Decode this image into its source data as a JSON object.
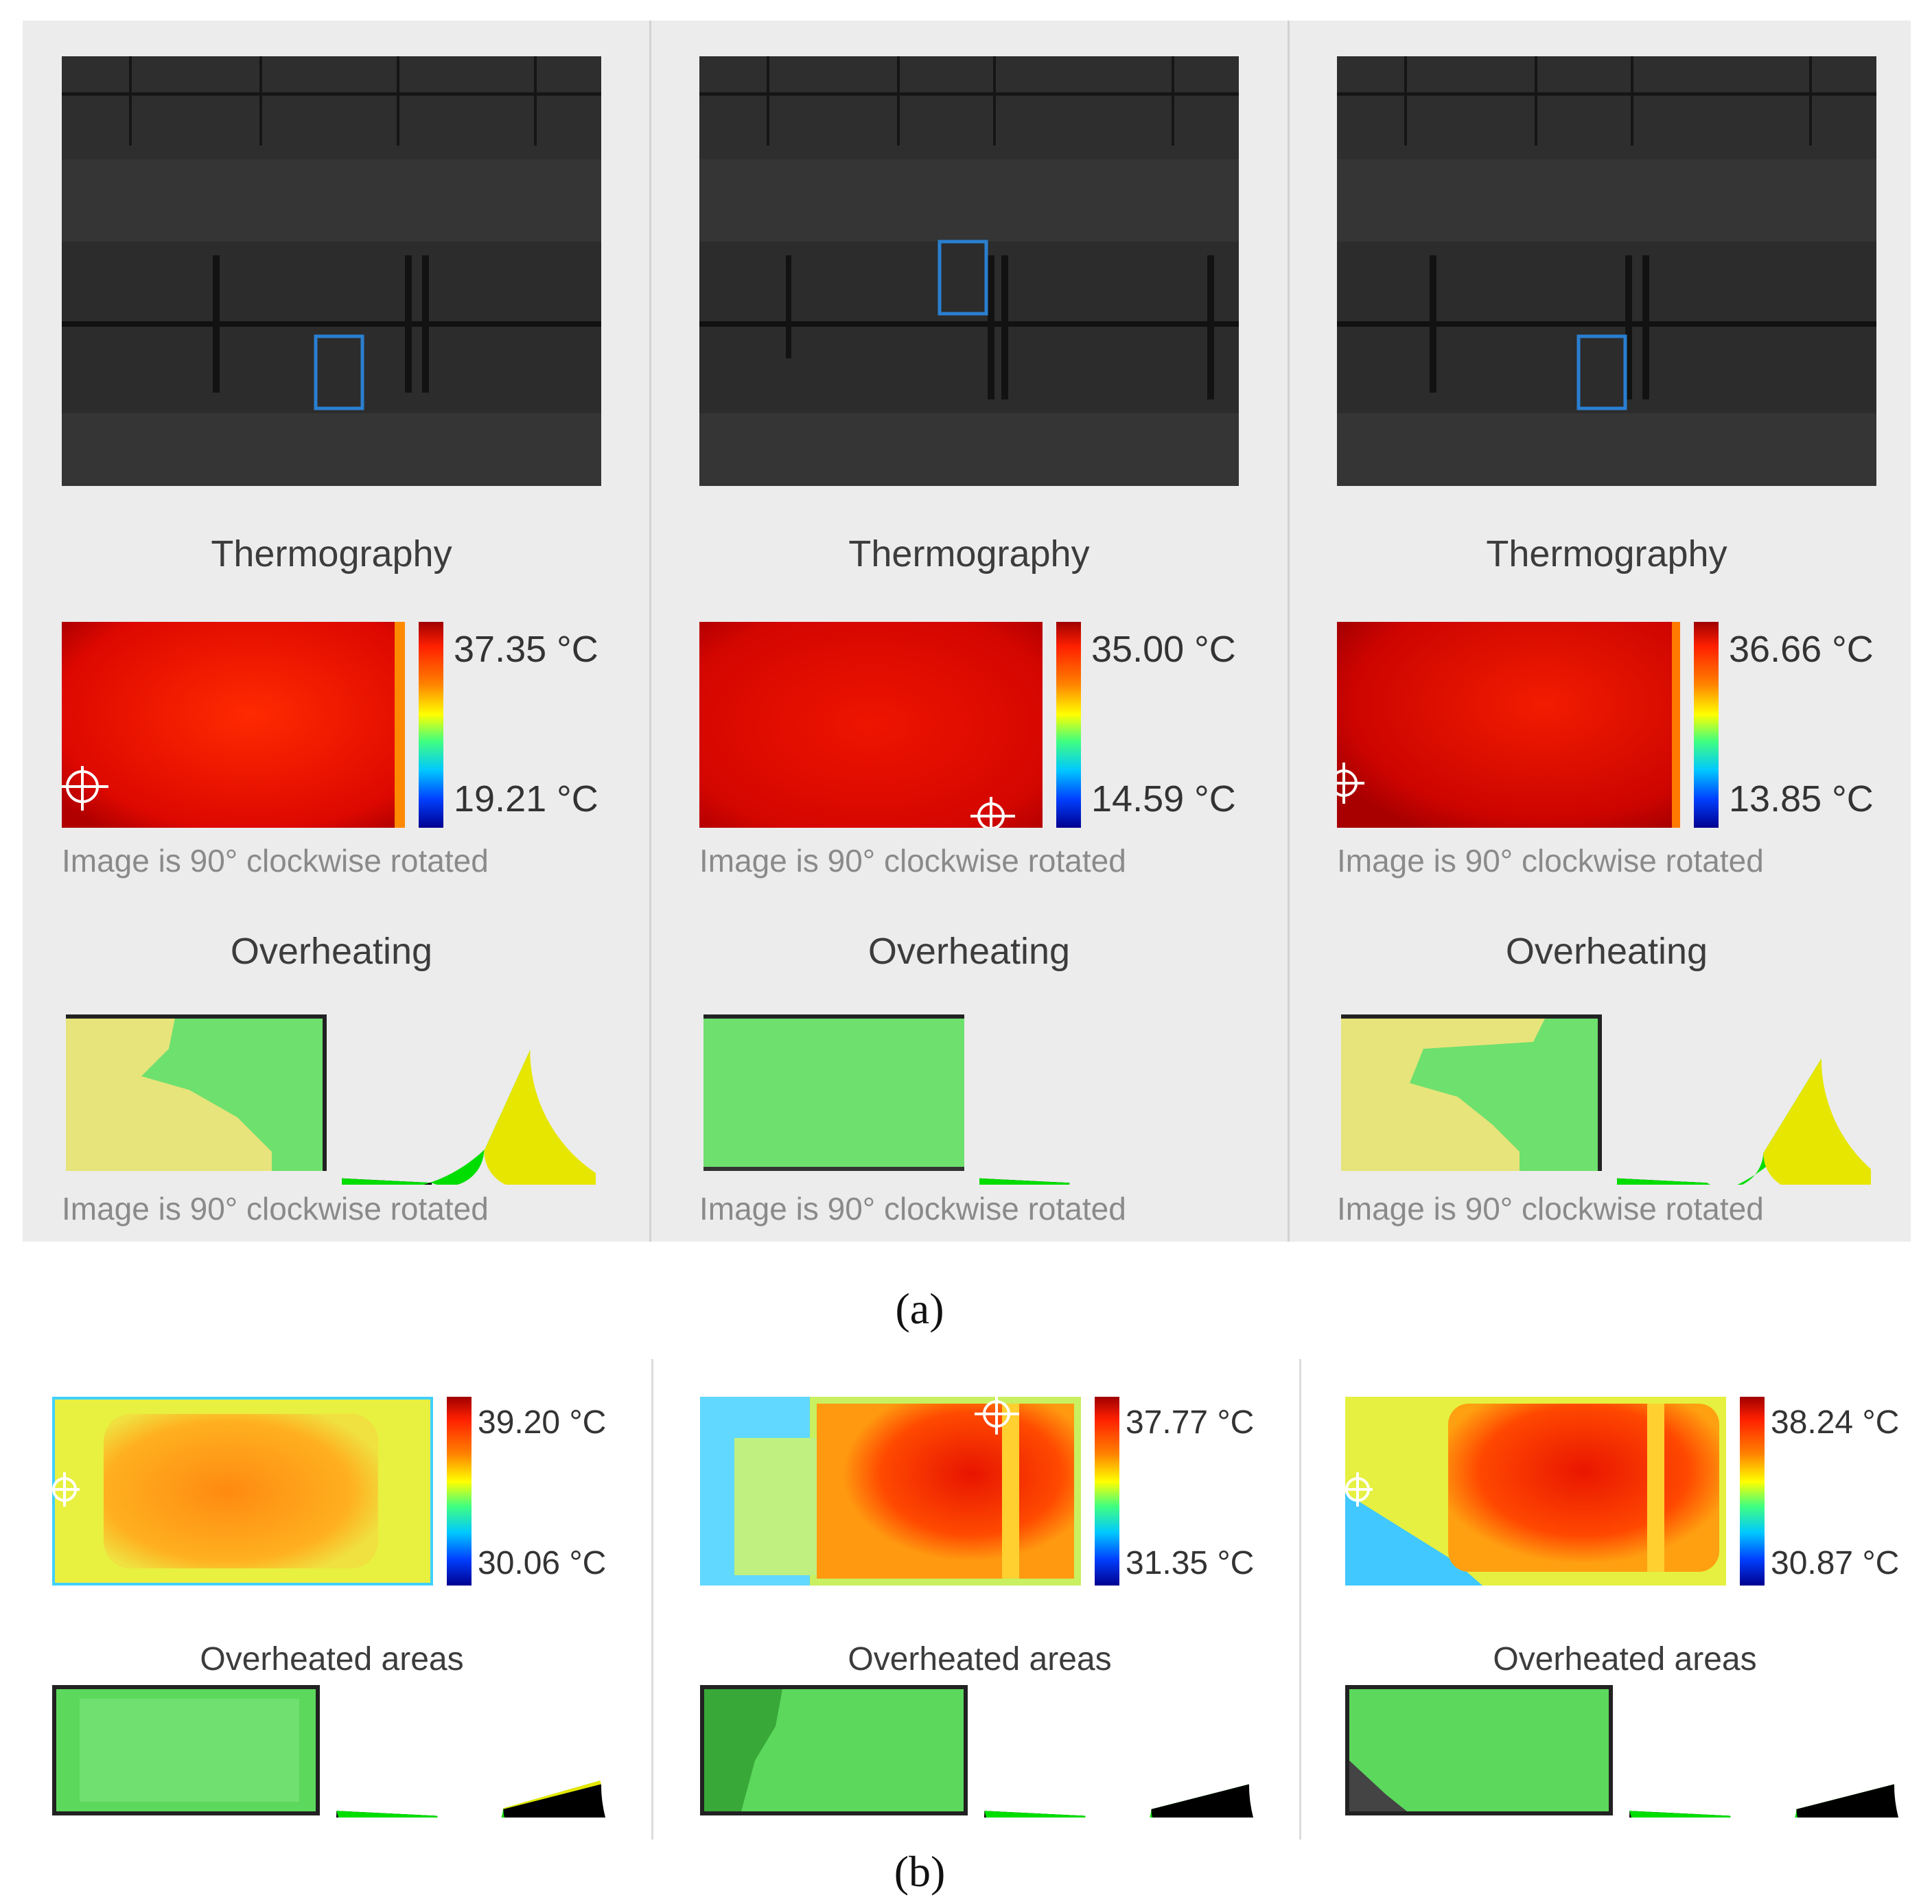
{
  "panel_a": {
    "columns": [
      {
        "title_thermography": "Thermography",
        "max_temp": "37.35 °C",
        "min_temp": "19.21 °C",
        "rotation_note_1": "Image is 90° clockwise rotated",
        "title_overheating": "Overheating",
        "rotation_note_2": "Image is 90° clockwise rotated",
        "overheated_fraction": 0.37
      },
      {
        "title_thermography": "Thermography",
        "max_temp": "35.00 °C",
        "min_temp": "14.59 °C",
        "rotation_note_1": "Image is 90° clockwise rotated",
        "title_overheating": "Overheating",
        "rotation_note_2": "Image is 90° clockwise rotated",
        "overheated_fraction": 0.0
      },
      {
        "title_thermography": "Thermography",
        "max_temp": "36.66 °C",
        "min_temp": "13.85 °C",
        "rotation_note_1": "Image is 90° clockwise rotated",
        "title_overheating": "Overheating",
        "rotation_note_2": "Image is 90° clockwise rotated",
        "overheated_fraction": 0.33
      }
    ]
  },
  "caption_a": "(a)",
  "panel_b": {
    "columns": [
      {
        "max_temp": "39.20 °C",
        "min_temp": "30.06 °C",
        "title": "Overheated areas",
        "overheated_fraction": 0.01
      },
      {
        "max_temp": "37.77 °C",
        "min_temp": "31.35 °C",
        "title": "Overheated areas",
        "overheated_fraction": 0.0
      },
      {
        "max_temp": "38.24 °C",
        "min_temp": "30.87 °C",
        "title": "Overheated areas",
        "overheated_fraction": 0.0
      }
    ]
  },
  "caption_b": "(b)",
  "colors": {
    "panel_bg": "#ececec",
    "green": "#00dd00",
    "yellow": "#e6e600",
    "selection_blue": "#2a7fd0"
  }
}
